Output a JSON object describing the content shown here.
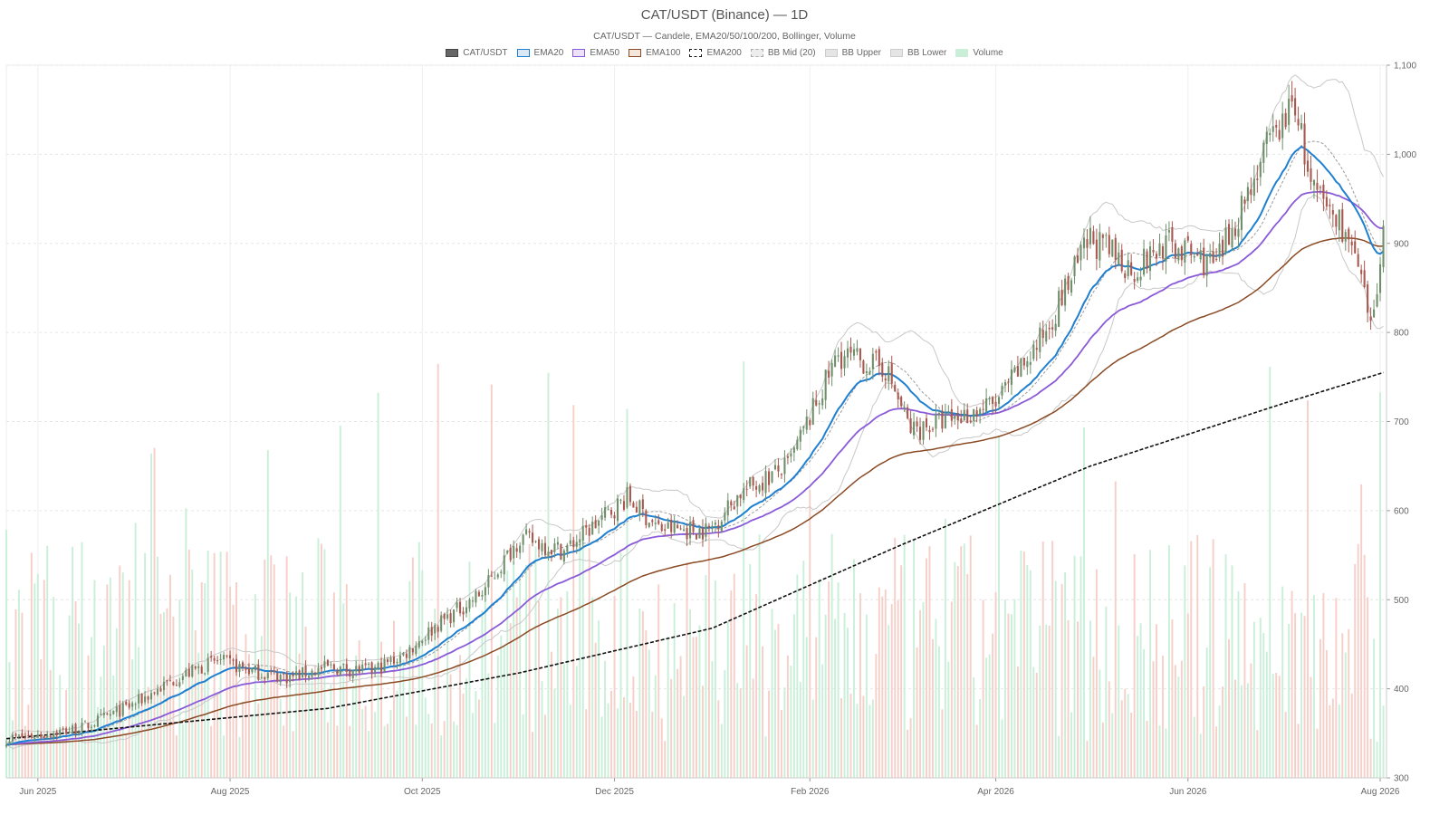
{
  "header": {
    "title": "CAT/USDT (Binance) — 1D",
    "subtitle": "CAT/USDT — Candele, EMA20/50/100/200, Bollinger, Volume"
  },
  "legend": [
    {
      "label": "CAT/USDT",
      "fill": "#666666",
      "stroke": "#444444",
      "dash": false
    },
    {
      "label": "EMA20",
      "fill": "#dbe9f7",
      "stroke": "#1f7fd0",
      "dash": false
    },
    {
      "label": "EMA50",
      "fill": "#ece3f8",
      "stroke": "#8a5ad8",
      "dash": false
    },
    {
      "label": "EMA100",
      "fill": "#f3e6dc",
      "stroke": "#8a4a24",
      "dash": false
    },
    {
      "label": "EMA200",
      "fill": "#ffffff",
      "stroke": "#111111",
      "dash": true
    },
    {
      "label": "BB Mid (20)",
      "fill": "#ededed",
      "stroke": "#aaaaaa",
      "dash": true
    },
    {
      "label": "BB Upper",
      "fill": "#e5e5e5",
      "stroke": "#cccccc",
      "dash": false
    },
    {
      "label": "BB Lower",
      "fill": "#e5e5e5",
      "stroke": "#cccccc",
      "dash": false
    },
    {
      "label": "Volume",
      "fill": "#c9efd9",
      "stroke": "#c9efd9",
      "dash": false
    }
  ],
  "chart_data": {
    "type": "candlestick",
    "y_axis": {
      "position": "right",
      "range": [
        300,
        1100
      ],
      "ticks": [
        "1,100",
        "1,000",
        "900",
        "800",
        "700",
        "600",
        "500",
        "400",
        "300"
      ],
      "tick_values": [
        1100,
        1000,
        900,
        800,
        700,
        600,
        500,
        400,
        300
      ]
    },
    "x_axis": {
      "ticks": [
        "Jun 2025",
        "Aug 2025",
        "Oct 2025",
        "Dec 2025",
        "Feb 2026",
        "Apr 2026",
        "Jun 2026",
        "Aug 2026"
      ],
      "tick_dates": [
        "2025-06-01",
        "2025-08-01",
        "2025-10-01",
        "2025-12-01",
        "2026-02-01",
        "2026-04-01",
        "2026-06-01",
        "2026-08-01"
      ],
      "range": [
        "2025-05-22",
        "2026-08-03"
      ]
    },
    "colors": {
      "up": "#6e8f6a",
      "down": "#a8584e",
      "vol_up": "#c9efd9",
      "vol_down": "#f5cfc8",
      "ema20": "#1f7fd0",
      "ema50": "#8a5ad8",
      "ema100": "#8a4a24",
      "ema200": "#111111",
      "bb_mid": "#9a9a9a",
      "bb_band": "#c8c8c8"
    },
    "close_path": [
      [
        "2025-05-22",
        344
      ],
      [
        "2025-06-01",
        348
      ],
      [
        "2025-06-15",
        356
      ],
      [
        "2025-07-01",
        382
      ],
      [
        "2025-07-15",
        412
      ],
      [
        "2025-07-28",
        432
      ],
      [
        "2025-08-10",
        418
      ],
      [
        "2025-08-20",
        413
      ],
      [
        "2025-09-01",
        424
      ],
      [
        "2025-09-15",
        420
      ],
      [
        "2025-09-25",
        438
      ],
      [
        "2025-10-05",
        470
      ],
      [
        "2025-10-20",
        508
      ],
      [
        "2025-11-01",
        570
      ],
      [
        "2025-11-15",
        555
      ],
      [
        "2025-11-25",
        585
      ],
      [
        "2025-12-05",
        615
      ],
      [
        "2025-12-15",
        580
      ],
      [
        "2025-12-31",
        578
      ],
      [
        "2026-01-10",
        620
      ],
      [
        "2026-01-25",
        650
      ],
      [
        "2026-02-10",
        775
      ],
      [
        "2026-02-25",
        760
      ],
      [
        "2026-03-05",
        690
      ],
      [
        "2026-03-20",
        705
      ],
      [
        "2026-04-01",
        720
      ],
      [
        "2026-04-15",
        790
      ],
      [
        "2026-05-01",
        905
      ],
      [
        "2026-05-15",
        870
      ],
      [
        "2026-05-25",
        900
      ],
      [
        "2026-06-10",
        875
      ],
      [
        "2026-06-25",
        1000
      ],
      [
        "2026-07-05",
        1060
      ],
      [
        "2026-07-10",
        960
      ],
      [
        "2026-07-20",
        920
      ],
      [
        "2026-07-25",
        870
      ],
      [
        "2026-07-29",
        800
      ],
      [
        "2026-08-02",
        910
      ]
    ],
    "ema200_path": [
      [
        "2025-05-22",
        344
      ],
      [
        "2025-09-01",
        378
      ],
      [
        "2025-11-01",
        418
      ],
      [
        "2026-01-01",
        468
      ],
      [
        "2026-03-01",
        560
      ],
      [
        "2026-05-01",
        650
      ],
      [
        "2026-07-01",
        720
      ],
      [
        "2026-08-02",
        755
      ]
    ],
    "volume_max": 1000000,
    "volume_note": "Volume bars occupy the lower part of the price panel"
  }
}
